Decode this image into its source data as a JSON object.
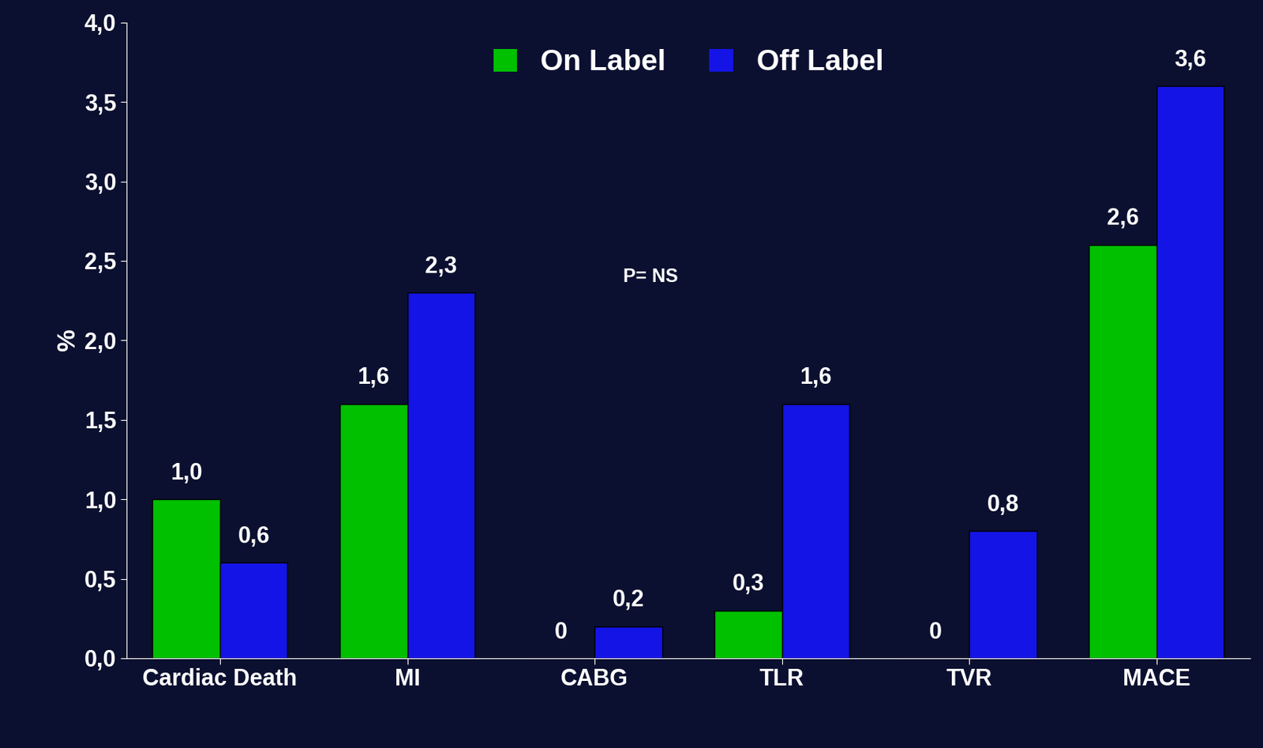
{
  "chart_data": {
    "type": "bar",
    "categories": [
      "Cardiac Death",
      "MI",
      "CABG",
      "TLR",
      "TVR",
      "MACE"
    ],
    "series": [
      {
        "name": "On Label",
        "color": "#00c000",
        "values": [
          1.0,
          1.6,
          0,
          0.3,
          0,
          2.6
        ],
        "value_labels": [
          "1,0",
          "1,6",
          "0",
          "0,3",
          "0",
          "2,6"
        ]
      },
      {
        "name": "Off Label",
        "color": "#1414e6",
        "values": [
          0.6,
          2.3,
          0.2,
          1.6,
          0.8,
          3.6
        ],
        "value_labels": [
          "0,6",
          "2,3",
          "0,2",
          "1,6",
          "0,8",
          "3,6"
        ]
      }
    ],
    "y_label": "%",
    "annotation": "P= NS",
    "ylim": [
      0,
      4.0
    ],
    "yticks": [
      {
        "value": 0,
        "label": "0,0"
      },
      {
        "value": 0.5,
        "label": "0,5"
      },
      {
        "value": 1.0,
        "label": "1,0"
      },
      {
        "value": 1.5,
        "label": "1,5"
      },
      {
        "value": 2.0,
        "label": "2,0"
      },
      {
        "value": 2.5,
        "label": "2,5"
      },
      {
        "value": 3.0,
        "label": "3,0"
      },
      {
        "value": 3.5,
        "label": "3,5"
      },
      {
        "value": 4.0,
        "label": "4,0"
      }
    ],
    "data_labels": true,
    "legend": "upper center",
    "grid": false
  }
}
